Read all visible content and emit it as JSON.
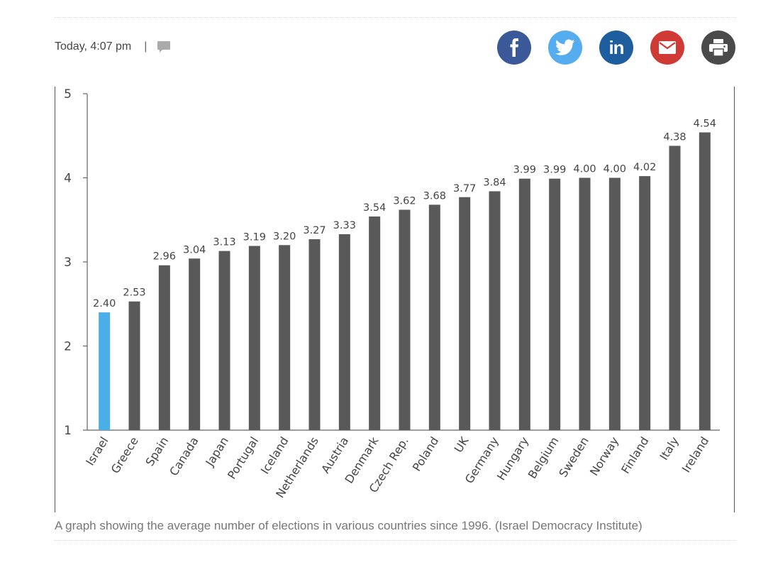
{
  "meta": {
    "timestamp": "Today, 4:07 pm",
    "separator": "|"
  },
  "icons": {
    "comment": "comment-icon",
    "facebook": "facebook-icon",
    "twitter": "twitter-icon",
    "linkedin": "linkedin-icon",
    "email": "email-icon",
    "print": "print-icon"
  },
  "colors": {
    "facebook": "#3b5998",
    "twitter": "#55acee",
    "linkedin": "#1f5e9e",
    "email": "#d03a35",
    "print": "#4a4a4a",
    "bar_default": "#595959",
    "bar_highlight": "#4aaee8"
  },
  "share": {
    "linkedin_label": "in"
  },
  "caption": "A graph showing the average number of elections in various countries since 1996. (Israel Democracy Institute)",
  "chart_data": {
    "type": "bar",
    "categories": [
      "Israel",
      "Greece",
      "Spain",
      "Canada",
      "Japan",
      "Portugal",
      "Iceland",
      "Netherlands",
      "Austria",
      "Denmark",
      "Czech Rep.",
      "Poland",
      "UK",
      "Germany",
      "Hungary",
      "Belgium",
      "Sweden",
      "Norway",
      "Finland",
      "Italy",
      "Ireland"
    ],
    "values": [
      2.4,
      2.53,
      2.96,
      3.04,
      3.13,
      3.19,
      3.2,
      3.27,
      3.33,
      3.54,
      3.62,
      3.68,
      3.77,
      3.84,
      3.99,
      3.99,
      4.0,
      4.0,
      4.02,
      4.38,
      4.54
    ],
    "value_labels": [
      "2.40",
      "2.53",
      "2.96",
      "3.04",
      "3.13",
      "3.19",
      "3.20",
      "3.27",
      "3.33",
      "3.54",
      "3.62",
      "3.68",
      "3.77",
      "3.84",
      "3.99",
      "3.99",
      "4.00",
      "4.00",
      "4.02",
      "4.38",
      "4.54"
    ],
    "highlight_index": 0,
    "ylim": [
      1,
      5
    ],
    "yticks": [
      "1",
      "2",
      "3",
      "4",
      "5"
    ],
    "title": "",
    "xlabel": "",
    "ylabel": "",
    "grid": false
  }
}
